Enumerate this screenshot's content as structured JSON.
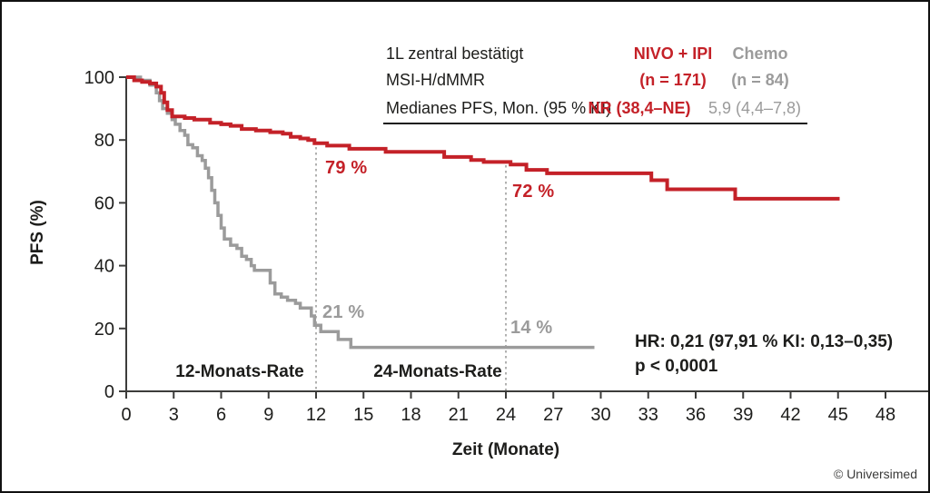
{
  "window": {
    "copyright": "© Universimed"
  },
  "colors": {
    "nivo_red": "#c42128",
    "chemo_gray": "#9b9b9b",
    "axis": "#3c3c3b",
    "text": "#1d1d1b",
    "reference_dotted": "#b1b1b0"
  },
  "header_table": {
    "rows": [
      {
        "label": "1L zentral bestätigt",
        "nivo": "NIVO + IPI",
        "chemo": "Chemo"
      },
      {
        "label": "MSI-H/dMMR",
        "nivo": "(n = 171)",
        "chemo": "(n = 84)"
      },
      {
        "label": "Medianes PFS, Mon. (95 % KI)",
        "nivo": "NR (38,4–NE)",
        "chemo": "5,9 (4,4–7,8)"
      }
    ]
  },
  "stats": {
    "hr": "HR: 0,21 (97,91 % KI: 0,13–0,35)",
    "p": "p < 0,0001"
  },
  "chart_data": {
    "type": "line",
    "style": "kaplan-meier-step",
    "title": "",
    "xlabel": "Zeit (Monate)",
    "ylabel": "PFS (%)",
    "xlim": [
      0,
      48
    ],
    "ylim": [
      0,
      100
    ],
    "x_ticks": [
      0,
      3,
      6,
      9,
      12,
      15,
      18,
      21,
      24,
      27,
      30,
      33,
      36,
      39,
      42,
      45,
      48
    ],
    "y_ticks": [
      0,
      20,
      40,
      60,
      80,
      100
    ],
    "grid": false,
    "legend_position": "top-right-table",
    "reference_lines_x": [
      12,
      24
    ],
    "series": [
      {
        "name": "NIVO + IPI",
        "n": 171,
        "median_pfs_months": "NR (38,4–NE)",
        "color": "#c42128",
        "points": [
          [
            0,
            100
          ],
          [
            0.5,
            99
          ],
          [
            1.0,
            98.5
          ],
          [
            1.5,
            98
          ],
          [
            1.9,
            97
          ],
          [
            2.2,
            95
          ],
          [
            2.4,
            92
          ],
          [
            2.6,
            89.5
          ],
          [
            2.9,
            87.5
          ],
          [
            3.7,
            87
          ],
          [
            4.3,
            86.5
          ],
          [
            5.3,
            85.5
          ],
          [
            6.0,
            85
          ],
          [
            6.6,
            84.5
          ],
          [
            7.3,
            83.5
          ],
          [
            8.2,
            83
          ],
          [
            9.1,
            82.5
          ],
          [
            9.9,
            82
          ],
          [
            10.4,
            81
          ],
          [
            11.0,
            80.5
          ],
          [
            11.5,
            80
          ],
          [
            11.9,
            79
          ],
          [
            12.7,
            78.2
          ],
          [
            14.1,
            77.2
          ],
          [
            16.4,
            76.2
          ],
          [
            20.1,
            74.6
          ],
          [
            21.8,
            73.6
          ],
          [
            22.6,
            73
          ],
          [
            24.3,
            72.2
          ],
          [
            25.3,
            70.5
          ],
          [
            26.6,
            69.4
          ],
          [
            33.2,
            67.2
          ],
          [
            34.2,
            64.3
          ],
          [
            38.5,
            61.3
          ],
          [
            45.1,
            61.3
          ]
        ]
      },
      {
        "name": "Chemo",
        "n": 84,
        "median_pfs_months": "5,9 (4,4–7,8)",
        "color": "#9b9b9b",
        "points": [
          [
            0,
            100
          ],
          [
            0.9,
            99
          ],
          [
            1.5,
            97.5
          ],
          [
            1.9,
            95
          ],
          [
            2.1,
            92.5
          ],
          [
            2.3,
            90
          ],
          [
            2.6,
            88.5
          ],
          [
            2.9,
            86.5
          ],
          [
            3.1,
            85
          ],
          [
            3.4,
            83
          ],
          [
            3.7,
            81.5
          ],
          [
            3.9,
            78.5
          ],
          [
            4.2,
            77.5
          ],
          [
            4.5,
            75
          ],
          [
            4.8,
            73.5
          ],
          [
            5.0,
            71
          ],
          [
            5.2,
            68
          ],
          [
            5.4,
            64
          ],
          [
            5.6,
            60
          ],
          [
            5.8,
            56
          ],
          [
            6.0,
            52
          ],
          [
            6.2,
            48.5
          ],
          [
            6.6,
            46.5
          ],
          [
            7.0,
            45.5
          ],
          [
            7.3,
            43
          ],
          [
            7.6,
            42
          ],
          [
            7.9,
            40
          ],
          [
            8.1,
            38.5
          ],
          [
            9.1,
            34.5
          ],
          [
            9.4,
            31
          ],
          [
            9.8,
            30
          ],
          [
            10.2,
            29
          ],
          [
            10.7,
            28
          ],
          [
            11.0,
            26.5
          ],
          [
            11.7,
            24
          ],
          [
            11.9,
            21
          ],
          [
            12.3,
            19
          ],
          [
            13.4,
            16.5
          ],
          [
            14.2,
            14
          ],
          [
            29.6,
            14
          ]
        ]
      }
    ],
    "annotations": {
      "nivo_12m": {
        "text": "79 %",
        "month": 12,
        "value": 79,
        "series": "NIVO + IPI"
      },
      "nivo_24m": {
        "text": "72 %",
        "month": 24,
        "value": 72,
        "series": "NIVO + IPI"
      },
      "chemo_12m": {
        "text": "21 %",
        "month": 12,
        "value": 21,
        "series": "Chemo"
      },
      "chemo_24m": {
        "text": "14 %",
        "month": 24,
        "value": 14,
        "series": "Chemo"
      },
      "rate12": {
        "text": "12-Monats-Rate"
      },
      "rate24": {
        "text": "24-Monats-Rate"
      }
    }
  }
}
